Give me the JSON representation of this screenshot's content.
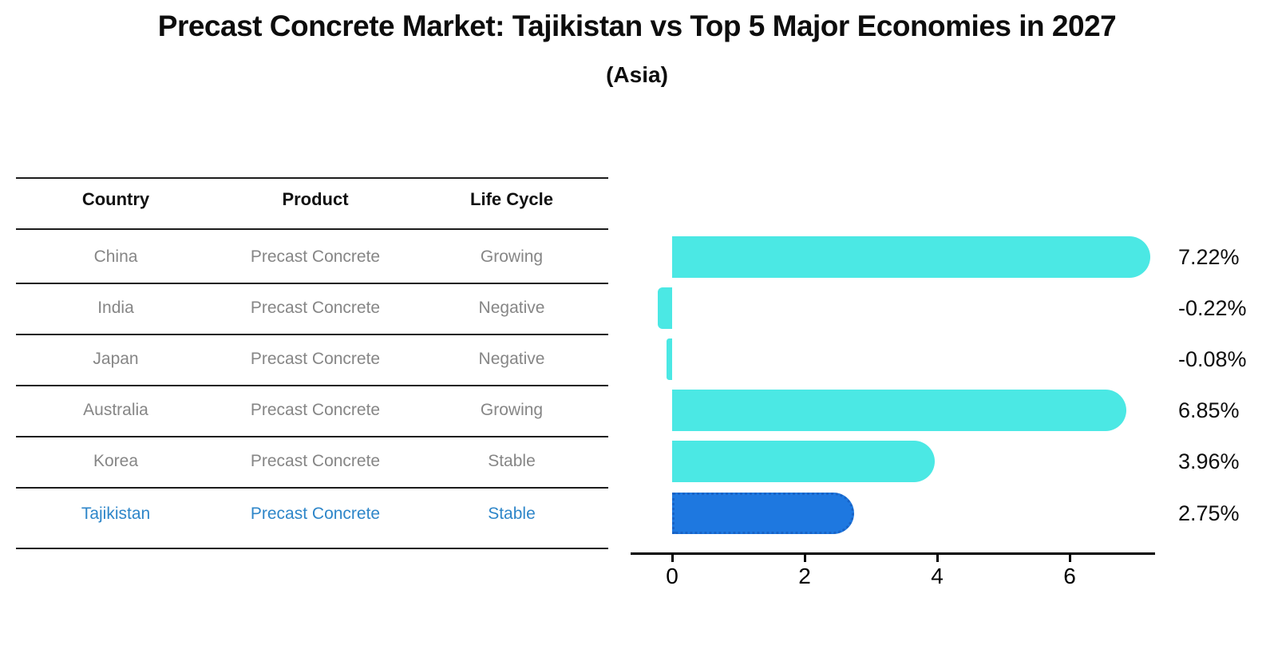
{
  "title": "Precast Concrete Market: Tajikistan vs Top 5 Major Economies in 2027",
  "subtitle": "(Asia)",
  "table": {
    "headers": [
      "Country",
      "Product",
      "Life Cycle"
    ],
    "rows": [
      {
        "country": "China",
        "product": "Precast Concrete",
        "life_cycle": "Growing"
      },
      {
        "country": "India",
        "product": "Precast Concrete",
        "life_cycle": "Negative"
      },
      {
        "country": "Japan",
        "product": "Precast Concrete",
        "life_cycle": "Negative"
      },
      {
        "country": "Australia",
        "product": "Precast Concrete",
        "life_cycle": "Growing"
      },
      {
        "country": "Korea",
        "product": "Precast Concrete",
        "life_cycle": "Stable"
      },
      {
        "country": "Tajikistan",
        "product": "Precast Concrete",
        "life_cycle": "Stable"
      }
    ],
    "text_color": "#868686",
    "header_color": "#111111",
    "highlight_row": "Tajikistan",
    "highlight_text_color": "#2E86C9"
  },
  "chart_data": {
    "type": "bar",
    "orientation": "horizontal",
    "categories": [
      "China",
      "India",
      "Japan",
      "Australia",
      "Korea",
      "Tajikistan"
    ],
    "values": [
      7.22,
      -0.22,
      -0.08,
      6.85,
      3.96,
      2.75
    ],
    "value_labels": [
      "7.22%",
      "-0.22%",
      "-0.08%",
      "6.85%",
      "3.96%",
      "2.75%"
    ],
    "unit": "percent",
    "x_ticks": [
      "0",
      "2",
      "4",
      "6"
    ],
    "x_tick_values": [
      0,
      2,
      4,
      6
    ],
    "xlim": [
      -0.63,
      7.3
    ],
    "grid": false,
    "legend": false,
    "bar_color": "#4BE8E4",
    "highlight_bar_color": "#1E78E0",
    "highlight_border_color": "#1863C6",
    "highlight_category": "Tajikistan",
    "label_color": "#0d0d0d"
  }
}
